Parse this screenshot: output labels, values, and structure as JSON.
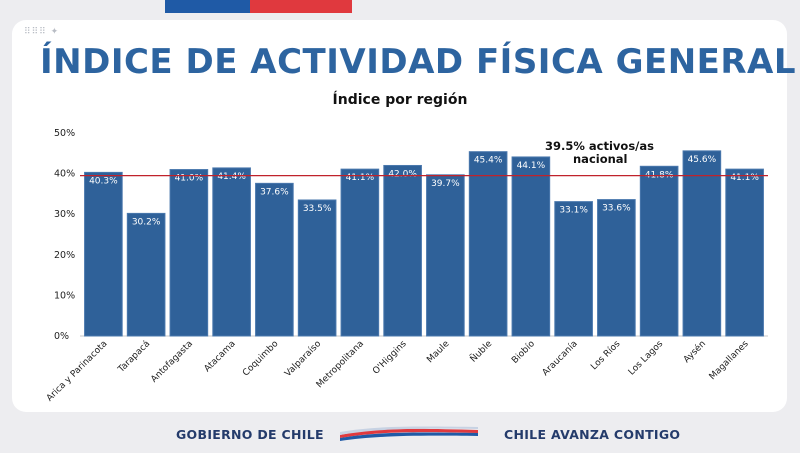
{
  "header": {
    "title": "ÍNDICE DE ACTIVIDAD FÍSICA GENERAL",
    "subtitle": "Índice por región"
  },
  "colors": {
    "bar": "#2f6199",
    "bar_border": "#4a78ad",
    "reference_line": "#c0222b",
    "title": "#2d64a0",
    "top_bar_blue": "#1f5aa6",
    "top_bar_red": "#e0393e"
  },
  "chart_data": {
    "type": "bar",
    "title": "Índice por región",
    "categories": [
      "Arica y Parinacota",
      "Tarapacá",
      "Antofagasta",
      "Atacama",
      "Coquimbo",
      "Valparaíso",
      "Metropolitana",
      "O'Higgins",
      "Maule",
      "Ñuble",
      "Biobío",
      "Araucanía",
      "Los Ríos",
      "Los Lagos",
      "Aysén",
      "Magallanes"
    ],
    "values": [
      40.3,
      30.2,
      41.0,
      41.4,
      37.6,
      33.5,
      41.1,
      42.0,
      39.7,
      45.4,
      44.1,
      33.1,
      33.6,
      41.8,
      45.6,
      41.1
    ],
    "value_labels": [
      "40.3%",
      "30.2%",
      "41.0%",
      "41.4%",
      "37.6%",
      "33.5%",
      "41.1%",
      "42.0%",
      "39.7%",
      "45.4%",
      "44.1%",
      "33.1%",
      "33.6%",
      "41.8%",
      "45.6%",
      "41.1%"
    ],
    "ylim": [
      0,
      50
    ],
    "yticks": [
      0,
      10,
      20,
      30,
      40,
      50
    ],
    "ytick_labels": [
      "0%",
      "10%",
      "20%",
      "30%",
      "40%",
      "50%"
    ],
    "reference": {
      "value": 39.5,
      "label_line1": "39.5% activos/as",
      "label_line2": "nacional"
    },
    "grid": false,
    "legend": "none"
  },
  "footer": {
    "left": "GOBIERNO DE CHILE",
    "right": "CHILE AVANZA CONTIGO"
  }
}
